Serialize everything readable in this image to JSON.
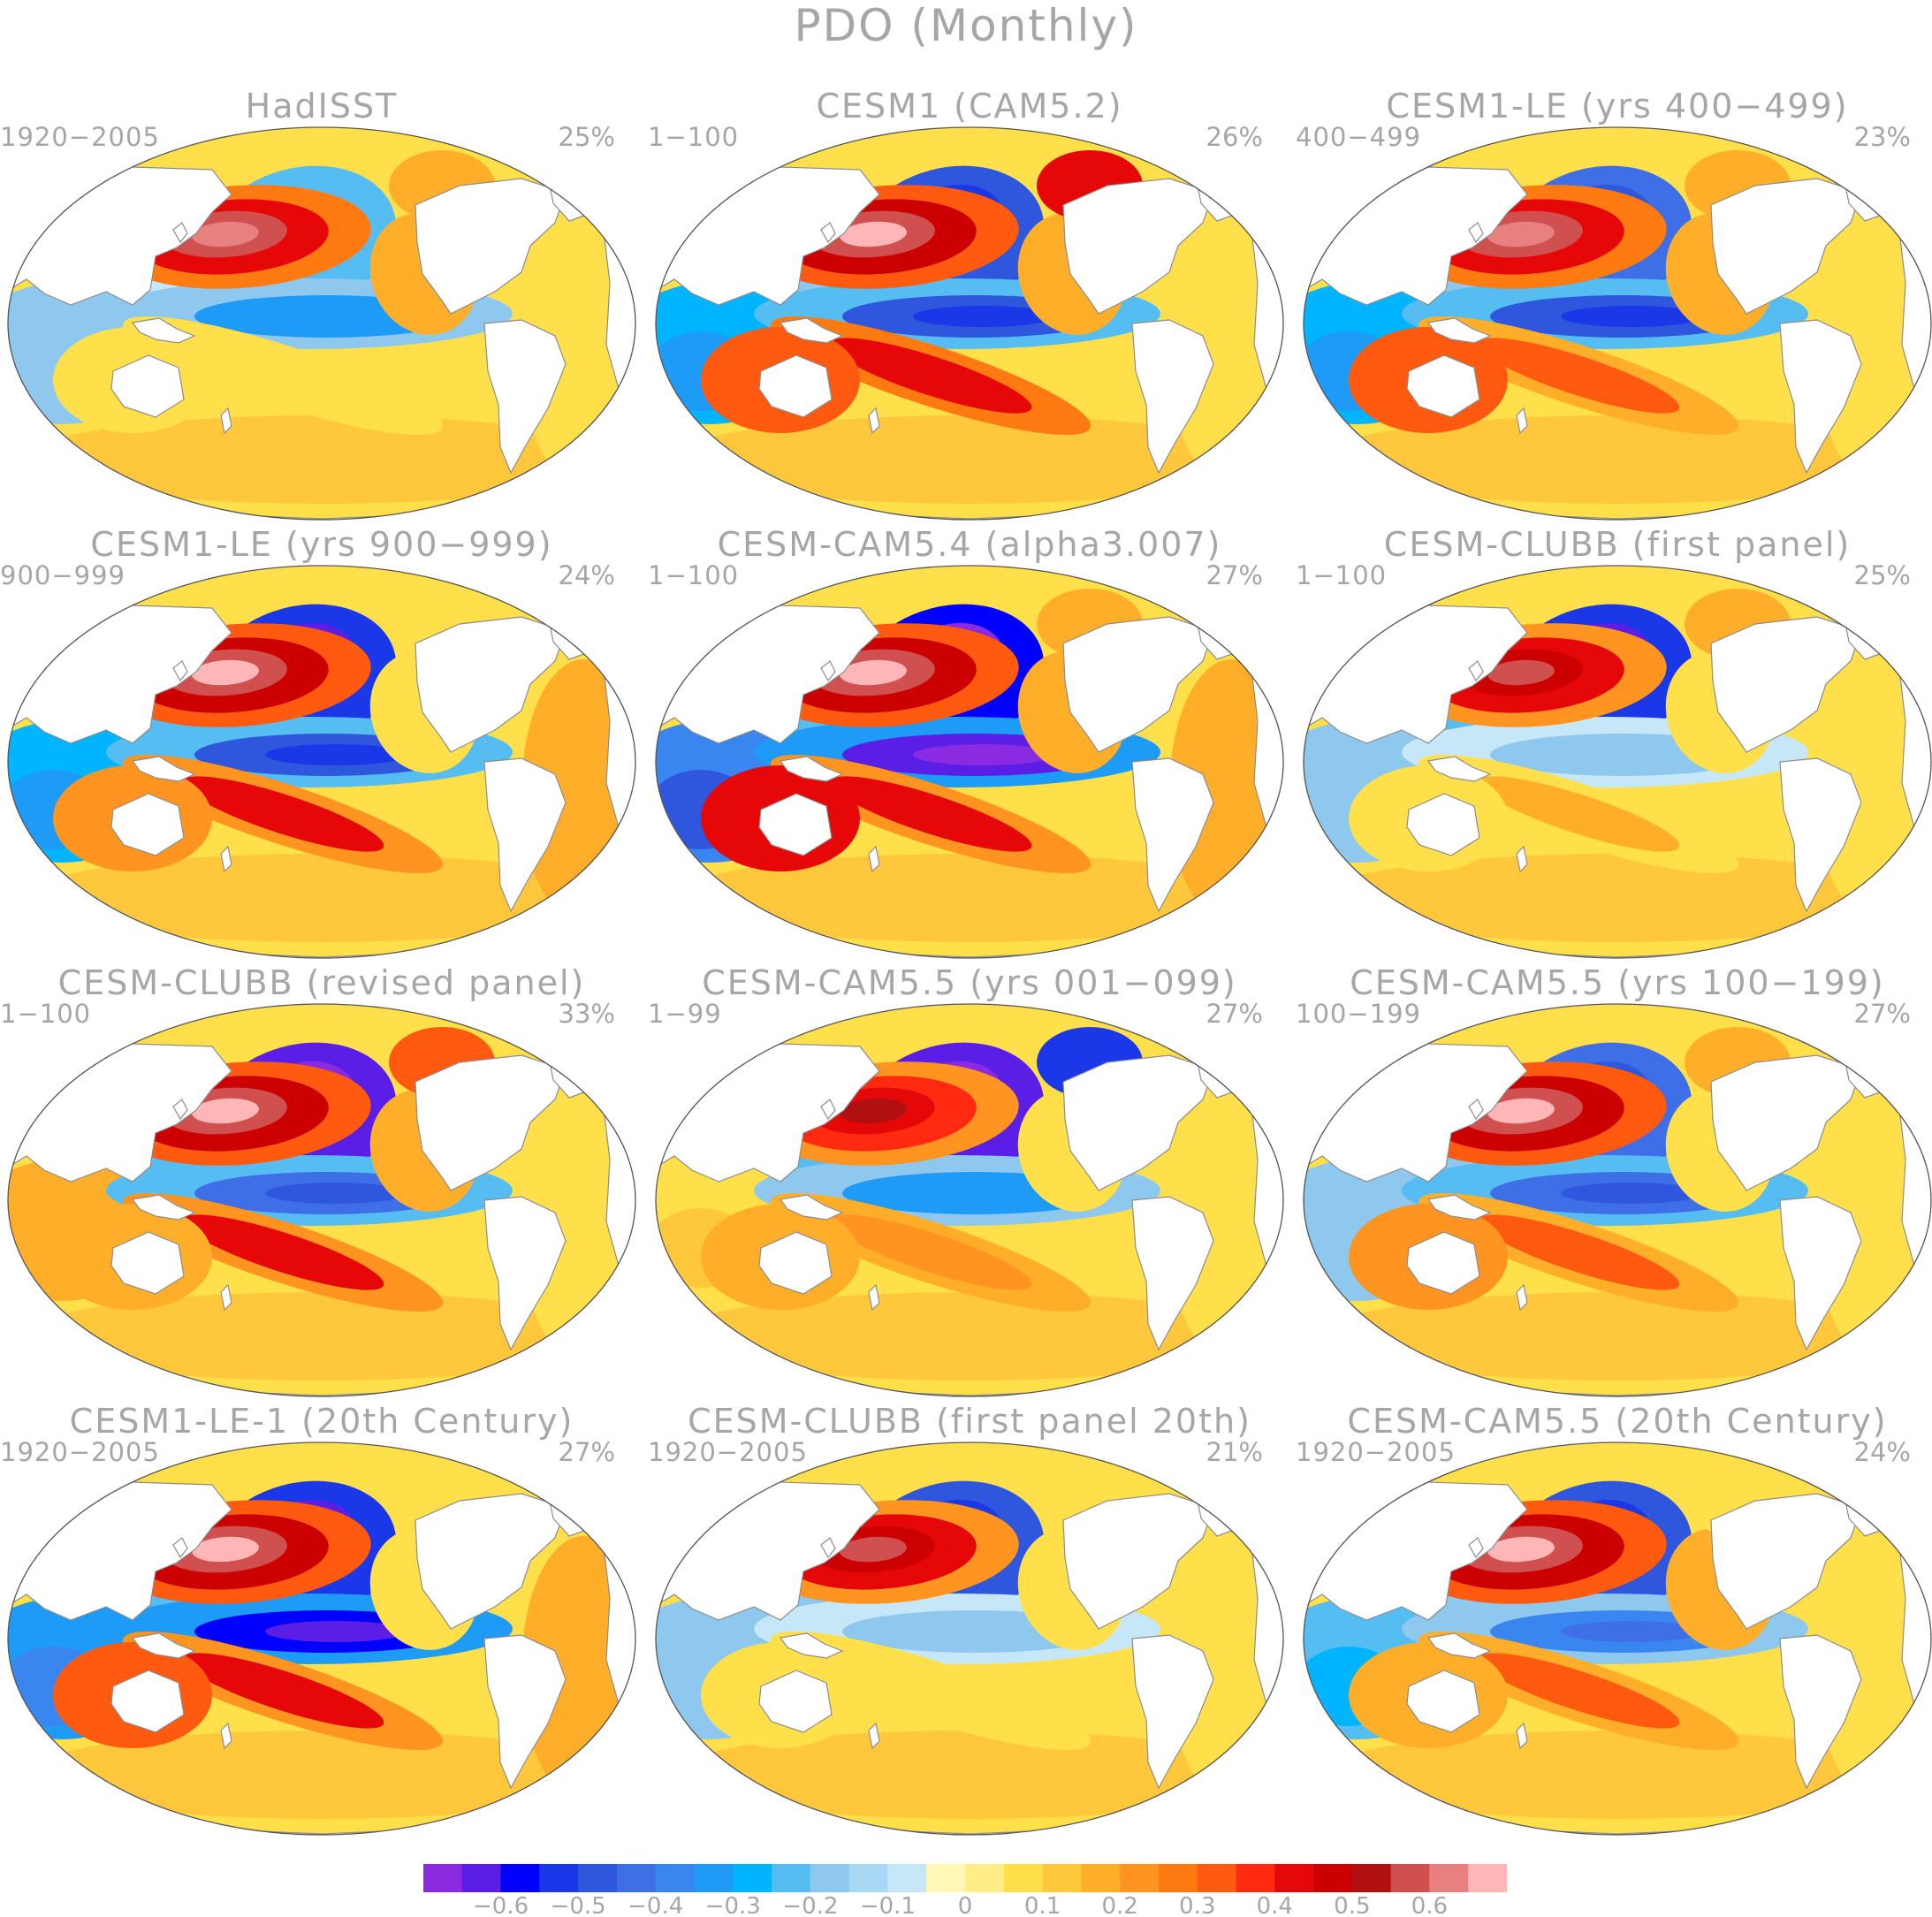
{
  "title": "PDO (Monthly)",
  "colors": {
    "land": "#ffffff",
    "coast": "#8c8c8c",
    "text": "#a6a6a6",
    "scale": [
      "#8a2be2",
      "#5a1ee6",
      "#0000ff",
      "#1a37e8",
      "#2f57de",
      "#3f6fe6",
      "#3a86f0",
      "#1e9bf7",
      "#00b4ff",
      "#56bdf2",
      "#8ec8ee",
      "#a8d8f4",
      "#c6e7f8",
      "#fff7b6",
      "#ffee88",
      "#ffe04a",
      "#ffc83c",
      "#ffae2a",
      "#ff9420",
      "#ff7a10",
      "#ff5a10",
      "#ff2a10",
      "#e60808",
      "#cc0000",
      "#b01010",
      "#d05050",
      "#e88080",
      "#ffb6b6"
    ]
  },
  "colorbar": {
    "tick_labels": [
      "−0.6",
      "−0.5",
      "−0.4",
      "−0.3",
      "−0.2",
      "−0.1",
      "0",
      "0.1",
      "0.2",
      "0.3",
      "0.4",
      "0.5",
      "0.6"
    ]
  },
  "panels": [
    {
      "title": "HadISST",
      "years": "1920−2005",
      "variance": "25%",
      "np_max": 0.55,
      "np_min": -0.2,
      "eq": -0.3,
      "sp": 0.1,
      "ind": -0.15,
      "aus": 0.1,
      "alaska": 0.2,
      "atl": 0.1,
      "cal": 0.2
    },
    {
      "title": "CESM1 (CAM5.2)",
      "years": "1−100",
      "variance": "26%",
      "np_max": 0.6,
      "np_min": -0.45,
      "eq": -0.45,
      "sp": 0.45,
      "ind": -0.25,
      "aus": 0.35,
      "alaska": 0.45,
      "atl": 0.1,
      "cal": 0.2
    },
    {
      "title": "CESM1-LE (yrs 400−499)",
      "years": "400−499",
      "variance": "23%",
      "np_max": 0.55,
      "np_min": -0.4,
      "eq": -0.45,
      "sp": 0.3,
      "ind": -0.25,
      "aus": 0.3,
      "alaska": 0.15,
      "atl": 0.1,
      "cal": 0.15
    },
    {
      "title": "CESM1-LE (yrs 900−999)",
      "years": "900−999",
      "variance": "24%",
      "np_max": 0.6,
      "np_min": -0.5,
      "eq": -0.45,
      "sp": 0.4,
      "ind": -0.25,
      "aus": 0.25,
      "alaska": 0.1,
      "atl": 0.15,
      "cal": 0.1
    },
    {
      "title": "CESM-CAM5.4 (alpha3.007)",
      "years": "1−100",
      "variance": "27%",
      "np_max": 0.6,
      "np_min": -0.55,
      "eq": -0.6,
      "sp": 0.4,
      "ind": -0.35,
      "aus": 0.4,
      "alaska": 0.15,
      "atl": 0.15,
      "cal": 0.15
    },
    {
      "title": "CESM-CLUBB (first panel)",
      "years": "1−100",
      "variance": "25%",
      "np_max": 0.5,
      "np_min": -0.5,
      "eq": -0.15,
      "sp": 0.15,
      "ind": -0.15,
      "aus": 0.1,
      "alaska": 0.2,
      "atl": 0.1,
      "cal": 0.1
    },
    {
      "title": "CESM-CLUBB (revised panel)",
      "years": "1−100",
      "variance": "33%",
      "np_max": 0.6,
      "np_min": -0.6,
      "eq": -0.4,
      "sp": 0.4,
      "ind": 0.15,
      "aus": 0.2,
      "alaska": 0.3,
      "atl": 0.1,
      "cal": 0.15
    },
    {
      "title": "CESM-CAM5.5 (yrs 001−099)",
      "years": "1−99",
      "variance": "27%",
      "np_max": 0.45,
      "np_min": -0.6,
      "eq": -0.3,
      "sp": 0.25,
      "ind": 0.1,
      "aus": 0.15,
      "alaska": -0.5,
      "atl": 0.1,
      "cal": 0.1
    },
    {
      "title": "CESM-CAM5.5 (yrs 100−199)",
      "years": "100−199",
      "variance": "27%",
      "np_max": 0.6,
      "np_min": -0.4,
      "eq": -0.4,
      "sp": 0.3,
      "ind": -0.15,
      "aus": 0.25,
      "alaska": 0.15,
      "atl": 0.1,
      "cal": 0.1
    },
    {
      "title": "CESM1-LE-1 (20th Century)",
      "years": "1920−2005",
      "variance": "27%",
      "np_max": 0.6,
      "np_min": -0.5,
      "eq": -0.55,
      "sp": 0.4,
      "ind": -0.3,
      "aus": 0.35,
      "alaska": 0.1,
      "atl": 0.15,
      "cal": 0.1
    },
    {
      "title": "CESM-CLUBB (first panel 20th)",
      "years": "1920−2005",
      "variance": "21%",
      "np_max": 0.5,
      "np_min": -0.45,
      "eq": -0.15,
      "sp": 0.1,
      "ind": -0.15,
      "aus": 0.1,
      "alaska": 0.1,
      "atl": 0.1,
      "cal": 0.1
    },
    {
      "title": "CESM-CAM5.5 (20th Century)",
      "years": "1920−2005",
      "variance": "24%",
      "np_max": 0.6,
      "np_min": -0.45,
      "eq": -0.35,
      "sp": 0.3,
      "ind": -0.2,
      "aus": 0.2,
      "alaska": 0.1,
      "atl": 0.1,
      "cal": 0.15
    }
  ]
}
